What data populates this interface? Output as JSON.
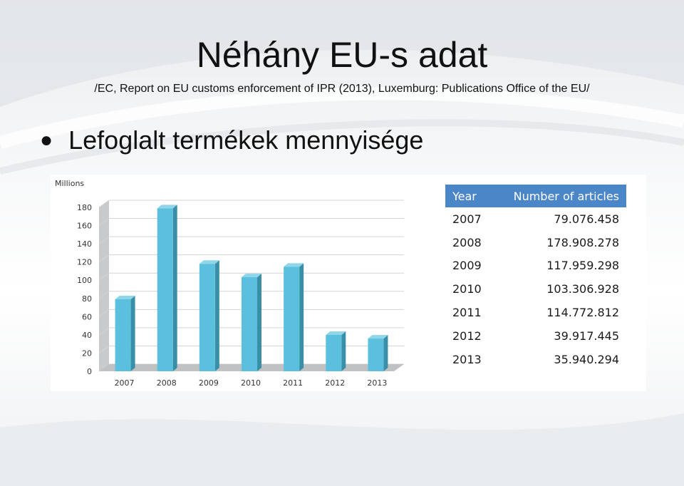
{
  "slide": {
    "title": "Néhány EU-s adat",
    "source": "/EC, Report on EU customs enforcement of IPR (2013), Luxemburg: Publications Office of the EU/",
    "bullet": "Lefoglalt termékek mennyisége"
  },
  "chart_data": {
    "type": "bar",
    "ylabel": "Millions",
    "categories": [
      "2007",
      "2008",
      "2009",
      "2010",
      "2011",
      "2012",
      "2013"
    ],
    "values": [
      79.076458,
      178.908278,
      117.959298,
      103.306928,
      114.772812,
      39.917445,
      35.940294
    ],
    "yticks": [
      "0",
      "20",
      "40",
      "60",
      "80",
      "100",
      "120",
      "140",
      "160",
      "180"
    ],
    "ylim": [
      0,
      190
    ],
    "grid": true,
    "bar_color": "#5bc0de",
    "table": {
      "headers": [
        "Year",
        "Number of articles"
      ],
      "header_color": "#4a86c8",
      "rows": [
        [
          "2007",
          "79.076.458"
        ],
        [
          "2008",
          "178.908.278"
        ],
        [
          "2009",
          "117.959.298"
        ],
        [
          "2010",
          "103.306.928"
        ],
        [
          "2011",
          "114.772.812"
        ],
        [
          "2012",
          "39.917.445"
        ],
        [
          "2013",
          "35.940.294"
        ]
      ]
    }
  }
}
